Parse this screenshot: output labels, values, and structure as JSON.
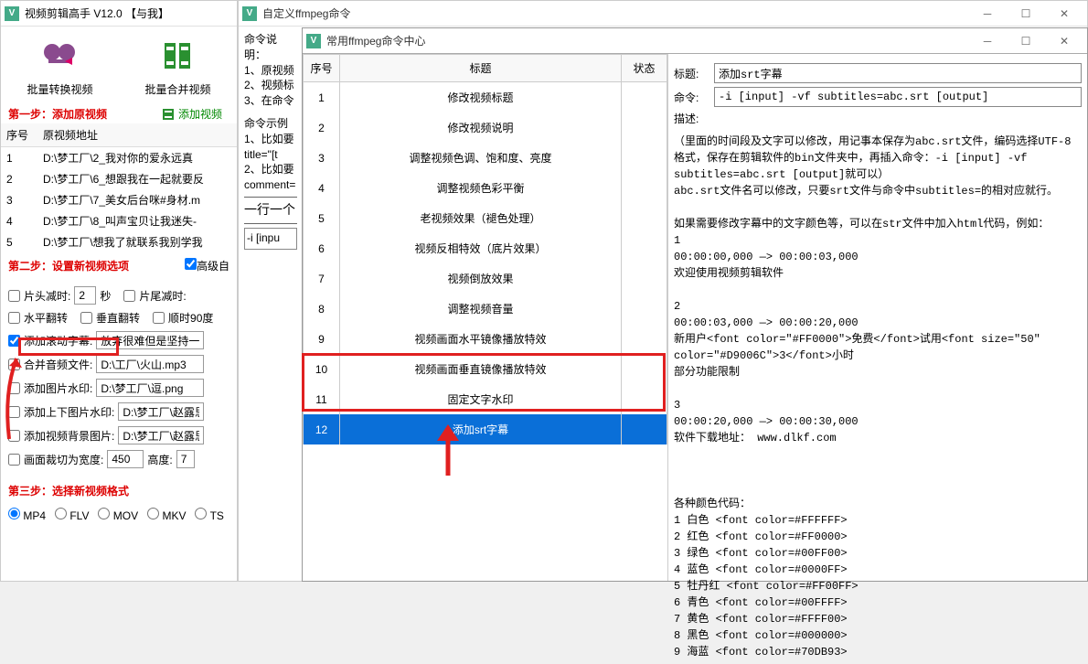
{
  "main": {
    "title": "视频剪辑高手 V12.0  【与我】",
    "tools": [
      {
        "label": "批量转换视频",
        "color": "#a050a0"
      },
      {
        "label": "批量合并视频",
        "color": "#2a9030"
      }
    ],
    "step1": "第一步：添加原视频",
    "add_video": "添加视频",
    "table": {
      "headers": [
        "序号",
        "原视频地址"
      ],
      "rows": [
        [
          "1",
          "D:\\梦工厂\\2_我对你的爱永远真"
        ],
        [
          "2",
          "D:\\梦工厂\\6_想跟我在一起就要反"
        ],
        [
          "3",
          "D:\\梦工厂\\7_美女后台咪#身材.m"
        ],
        [
          "4",
          "D:\\梦工厂\\8_叫声宝贝让我迷失-"
        ],
        [
          "5",
          "D:\\梦工厂\\想我了就联系我别学我"
        ]
      ]
    },
    "step2": "第二步：设置新视频选项",
    "advanced": "高级自",
    "opts": {
      "head_cut": "片头减时:",
      "head_val": "2",
      "sec": "秒",
      "tail_cut": "片尾减时:",
      "hflip": "水平翻转",
      "vflip": "垂直翻转",
      "rot90": "顺时90度",
      "scroll_text": "添加滚动字幕:",
      "scroll_val": "放弃很难但是坚持一定",
      "merge_audio": "合并音频文件:",
      "merge_val": "D:\\工厂\\火山.mp3",
      "img_wm": "添加图片水印:",
      "img_val": "D:\\梦工厂\\逗.png",
      "top_bottom_wm": "添加上下图片水印:",
      "tb_val": "D:\\梦工厂\\赵露思",
      "bg_img": "添加视频背景图片:",
      "bg_val": "D:\\梦工厂\\赵露思",
      "crop_w": "画面裁切为宽度:",
      "crop_wv": "450",
      "height": "高度:",
      "crop_hv": "7"
    },
    "step3": "第三步：选择新视频格式",
    "formats": [
      "MP4",
      "FLV",
      "MOV",
      "MKV",
      "TS"
    ]
  },
  "ffmpeg": {
    "title": "自定义ffmpeg命令",
    "intro": "命令说明：\n1、原视频\n2、视频标\n3、在命令",
    "example": "命令示例\n1、比如要\ntitle=\"[t\n2、比如要\ncomment=",
    "line": "一行一个",
    "cmd": "-i [inpu"
  },
  "cmdcenter": {
    "title": "常用ffmpeg命令中心",
    "headers": [
      "序号",
      "标题",
      "状态"
    ],
    "rows": [
      [
        "1",
        "修改视频标题",
        ""
      ],
      [
        "2",
        "修改视频说明",
        ""
      ],
      [
        "3",
        "调整视频色调、饱和度、亮度",
        ""
      ],
      [
        "4",
        "调整视频色彩平衡",
        ""
      ],
      [
        "5",
        "老视频效果（褪色处理）",
        ""
      ],
      [
        "6",
        "视频反相特效（底片效果）",
        ""
      ],
      [
        "7",
        "视频倒放效果",
        ""
      ],
      [
        "8",
        "调整视频音量",
        ""
      ],
      [
        "9",
        "视频画面水平镜像播放特效",
        ""
      ],
      [
        "10",
        "视频画面垂直镜像播放特效",
        ""
      ],
      [
        "11",
        "固定文字水印",
        ""
      ],
      [
        "12",
        "添加srt字幕",
        ""
      ]
    ],
    "selected": 12,
    "title_lbl": "标题:",
    "title_val": "添加srt字幕",
    "cmd_lbl": "命令:",
    "cmd_val": "-i [input] -vf subtitles=abc.srt [output]",
    "desc_lbl": "描述:",
    "desc": "（里面的时间段及文字可以修改，用记事本保存为abc.srt文件，编码选择UTF-8格式，保存在剪辑软件的bin文件夹中，再插入命令：-i [input] -vf subtitles=abc.srt [output]就可以）\nabc.srt文件名可以修改，只要srt文件与命令中subtitles=的相对应就行。\n\n如果需要修改字幕中的文字颜色等，可以在str文件中加入html代码，例如：\n1\n00:00:00,000 —> 00:00:03,000\n欢迎使用视频剪辑软件\n\n2\n00:00:03,000 —> 00:00:20,000\n新用户<font color=\"#FF0000\">免费</font>试用<font size=\"50\" color=\"#D9006C\">3</font>小时\n部分功能限制\n\n3\n00:00:20,000 —> 00:00:30,000\n软件下载地址： www.dlkf.com\n\n\n\n各种颜色代码：\n1 白色 <font color=#FFFFFF>\n2 红色 <font color=#FF0000>\n3 绿色 <font color=#00FF00>\n4 蓝色 <font color=#0000FF>\n5 牡丹红 <font color=#FF00FF>\n6 青色 <font color=#00FFFF>\n7 黄色 <font color=#FFFF00>\n8 黑色 <font color=#000000>\n9 海蓝 <font color=#70DB93>"
  },
  "colors": {
    "accent": "#0a6fd8",
    "highlight": "#e02020",
    "green": "#2a9030"
  }
}
